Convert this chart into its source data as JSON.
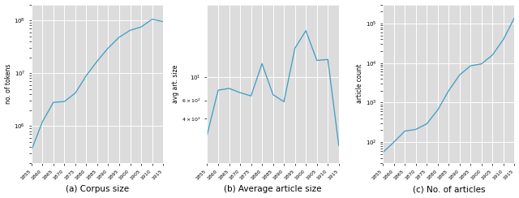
{
  "years": [
    1855,
    1860,
    1865,
    1870,
    1875,
    1880,
    1885,
    1890,
    1895,
    1900,
    1905,
    1910,
    1915
  ],
  "corpus_size": [
    350000.0,
    1200000.0,
    2800000.0,
    2900000.0,
    4200000.0,
    9000000.0,
    17000000.0,
    30000000.0,
    48000000.0,
    65000000.0,
    75000000.0,
    105000000.0,
    95000000.0
  ],
  "avg_art_size": [
    280,
    750,
    780,
    710,
    660,
    1350,
    680,
    580,
    1900,
    2800,
    1450,
    1480,
    220
  ],
  "article_count": [
    55,
    100,
    190,
    210,
    290,
    650,
    2000,
    5000,
    8500,
    9500,
    16000.0,
    40000.0,
    140000.0
  ],
  "line_color": "#3a9dc4",
  "bg_color": "#dcdcdc",
  "title_a": "(a) Corpus size",
  "title_b": "(b) Average article size",
  "title_c": "(c) No. of articles",
  "ylabel_a": "no. of tokens",
  "ylabel_b": "avg art. size",
  "ylabel_c": "article count",
  "year_ticks": [
    1855,
    1860,
    1865,
    1870,
    1875,
    1880,
    1885,
    1890,
    1895,
    1900,
    1905,
    1910,
    1915
  ],
  "grid_color": "#ffffff",
  "spine_color": "#ffffff"
}
